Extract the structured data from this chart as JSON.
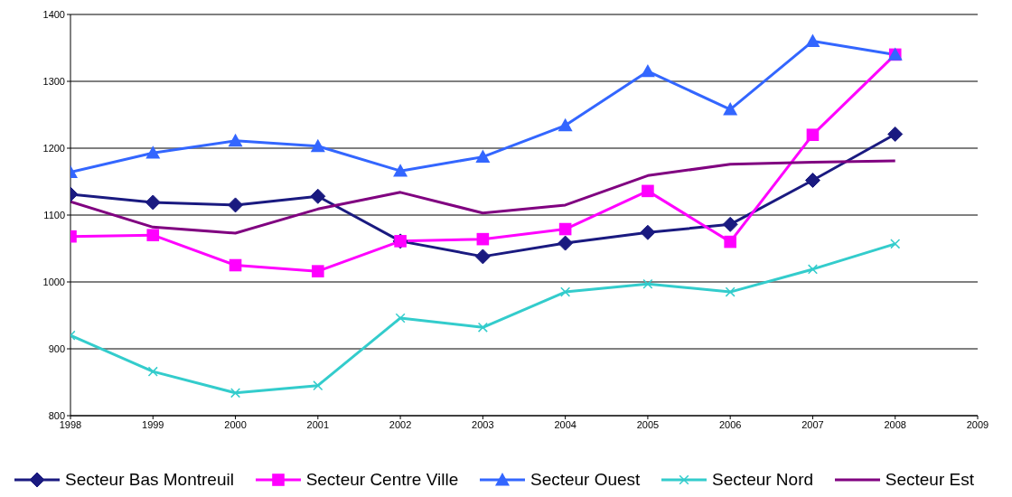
{
  "chart_data": {
    "type": "line",
    "x": [
      1998,
      1999,
      2000,
      2001,
      2002,
      2003,
      2004,
      2005,
      2006,
      2007,
      2008
    ],
    "xlim": [
      1998,
      2009
    ],
    "xticks": [
      1998,
      1999,
      2000,
      2001,
      2002,
      2003,
      2004,
      2005,
      2006,
      2007,
      2008,
      2009
    ],
    "ylim": [
      800,
      1400
    ],
    "yticks": [
      800,
      900,
      1000,
      1100,
      1200,
      1300,
      1400
    ],
    "grid": "y",
    "legend": "bottom",
    "series": [
      {
        "name": "Secteur Bas Montreuil",
        "color": "#1a1a80",
        "marker": "diamond",
        "values": [
          1131,
          1119,
          1115,
          1128,
          1061,
          1038,
          1058,
          1074,
          1086,
          1152,
          1221
        ]
      },
      {
        "name": "Secteur Centre Ville",
        "color": "#ff00ff",
        "marker": "square",
        "values": [
          1068,
          1070,
          1025,
          1016,
          1061,
          1064,
          1079,
          1136,
          1060,
          1220,
          1340
        ]
      },
      {
        "name": "Secteur Ouest",
        "color": "#3366ff",
        "marker": "triangle",
        "values": [
          1164,
          1193,
          1211,
          1203,
          1166,
          1187,
          1234,
          1315,
          1258,
          1360,
          1340
        ]
      },
      {
        "name": "Secteur Nord",
        "color": "#33cccc",
        "marker": "cross",
        "values": [
          920,
          866,
          834,
          845,
          946,
          932,
          985,
          997,
          985,
          1019,
          1057
        ]
      },
      {
        "name": "Secteur Est",
        "color": "#800080",
        "marker": "none",
        "values": [
          1120,
          1082,
          1073,
          1109,
          1134,
          1103,
          1115,
          1159,
          1176,
          1179,
          1181
        ]
      }
    ]
  }
}
